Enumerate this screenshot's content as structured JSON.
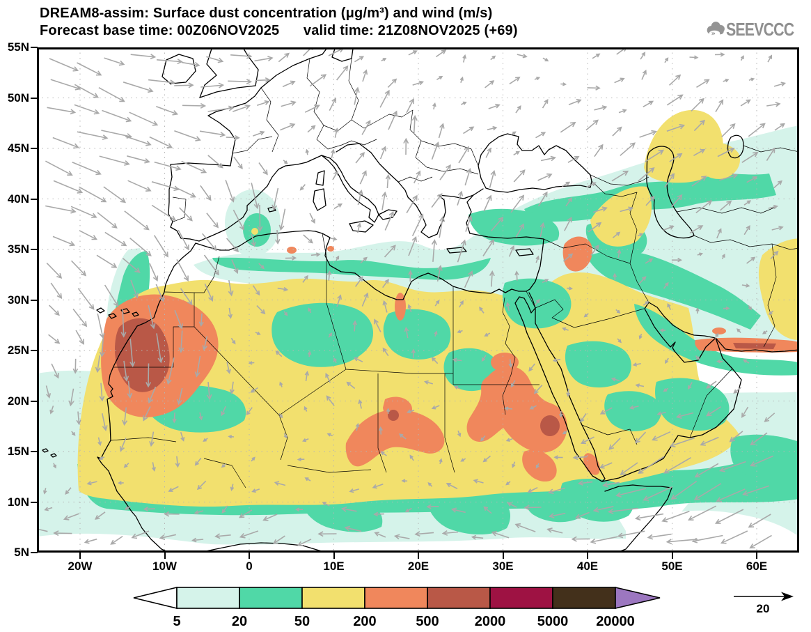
{
  "header": {
    "title_line1": "DREAM8-assim: Surface dust concentration (μg/m³) and wind (m/s)",
    "title_line2": "Forecast base time: 00Z06NOV2025      valid time: 21Z08NOV2025 (+69)",
    "logo_text": "SEEVCCC"
  },
  "map": {
    "lat_ticks": [
      "55N",
      "50N",
      "45N",
      "40N",
      "35N",
      "30N",
      "25N",
      "20N",
      "15N",
      "10N",
      "5N"
    ],
    "lon_ticks": [
      "20W",
      "10W",
      "0",
      "10E",
      "20E",
      "30E",
      "40E",
      "50E",
      "60E"
    ],
    "grid_color": "#b5b5b5",
    "coast_color": "#000000"
  },
  "legend": {
    "boundary_labels": [
      "5",
      "20",
      "50",
      "200",
      "500",
      "2000",
      "5000",
      "20000"
    ],
    "segment_colors": [
      "#ffffff",
      "#d5f3ea",
      "#50d8a7",
      "#f2e06e",
      "#f0875c",
      "#b95847",
      "#9e1243",
      "#43301b",
      "#9c77c0"
    ]
  },
  "wind": {
    "reference_label": "20",
    "arrow_color": "#a9a9a9"
  },
  "chart_data": {
    "type": "heatmap",
    "title": "DREAM8-assim: Surface dust concentration (μg/m³) and wind (m/s)",
    "variable": "surface dust concentration",
    "units": "μg/m³",
    "model": "DREAM8-assim",
    "forecast_base_time": "00Z06NOV2025",
    "valid_time": "21Z08NOV2025",
    "forecast_hour_offset": "+69",
    "contour_levels": [
      5,
      20,
      50,
      200,
      500,
      2000,
      5000,
      20000
    ],
    "lat_axis": {
      "min": "5N",
      "max": "55N",
      "tick_step_deg": 5
    },
    "lon_axis": {
      "min": "25W",
      "max": "65E",
      "tick_step_deg": 10
    },
    "wind_reference_ms": 20,
    "notable_dust_maxima": [
      {
        "region": "Morocco / Western Sahara",
        "approx_location": "12W, 26N",
        "band": "500-2000 μg/m³"
      },
      {
        "region": "Chad / Niger border",
        "approx_location": "17E, 16N",
        "band": "500-2000 μg/m³"
      },
      {
        "region": "Sudan / Red Sea coast",
        "approx_location": "36E, 18N",
        "band": "500-2000 μg/m³"
      },
      {
        "region": "Syria / Iraq",
        "approx_location": "40E, 34N",
        "band": "200-500 μg/m³"
      },
      {
        "region": "Makran coast (SE Iran)",
        "approx_location": "55E-62E, 25N",
        "band": "500-2000 μg/m³"
      }
    ],
    "background_regions": "Europe and NE Atlantic mostly below 5 μg/m³; Sahara and Arabia mostly 50-200 μg/m³ with 20-50 patches; Sahel, Mediterranean fringe and Caspian region 5-50 μg/m³"
  }
}
